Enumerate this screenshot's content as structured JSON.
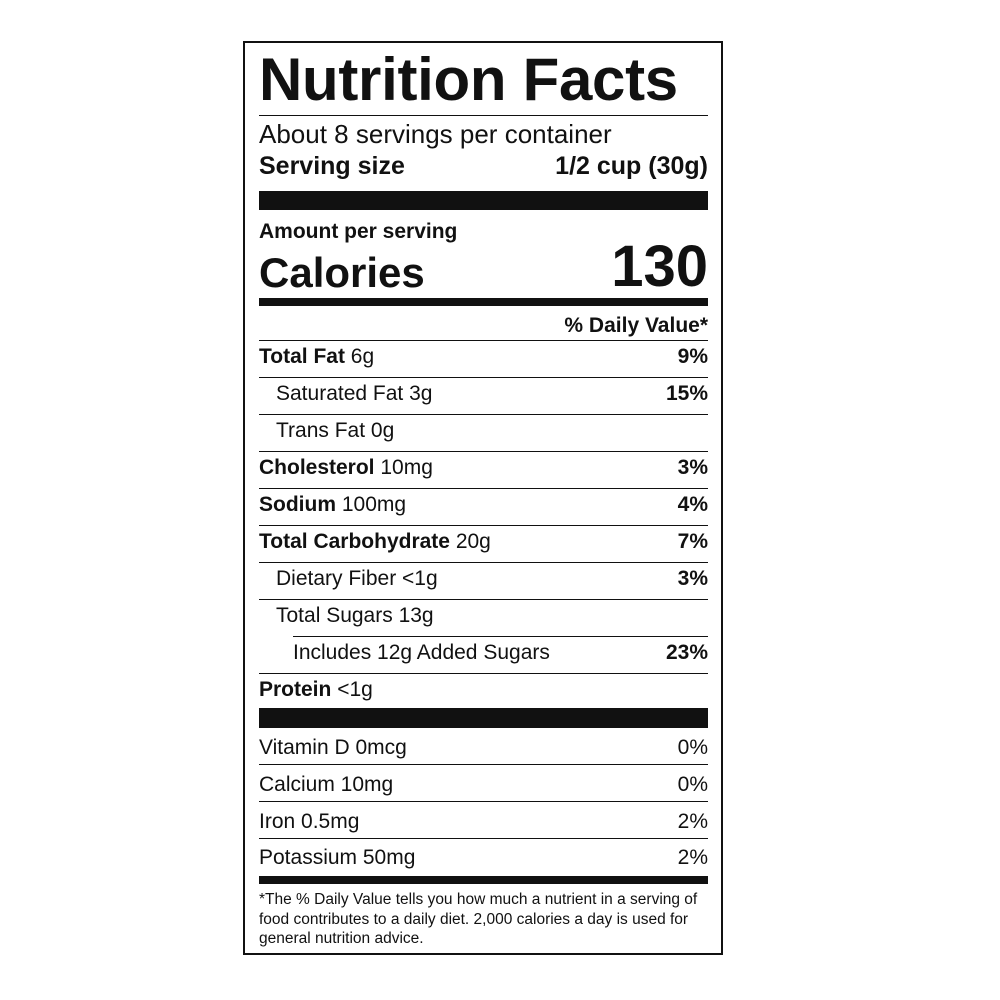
{
  "title": "Nutrition Facts",
  "servings_per_container": "About 8 servings per container",
  "serving_size": {
    "label": "Serving size",
    "value": "1/2 cup (30g)"
  },
  "amount_per_serving": "Amount per serving",
  "calories": {
    "label": "Calories",
    "value": "130"
  },
  "daily_value_header": "% Daily Value*",
  "nutrients": [
    {
      "name": "Total Fat",
      "amount": "6g",
      "dv": "9%",
      "bold": true,
      "indent": 0
    },
    {
      "name": "Saturated Fat",
      "amount": "3g",
      "dv": "15%",
      "bold": false,
      "indent": 1
    },
    {
      "name": "Trans Fat",
      "amount": "0g",
      "dv": "",
      "bold": false,
      "indent": 1
    },
    {
      "name": "Cholesterol",
      "amount": "10mg",
      "dv": "3%",
      "bold": true,
      "indent": 0
    },
    {
      "name": "Sodium",
      "amount": "100mg",
      "dv": "4%",
      "bold": true,
      "indent": 0
    },
    {
      "name": "Total Carbohydrate",
      "amount": "20g",
      "dv": "7%",
      "bold": true,
      "indent": 0
    },
    {
      "name": "Dietary Fiber",
      "amount": "<1g",
      "dv": "3%",
      "bold": false,
      "indent": 1
    },
    {
      "name": "Total Sugars",
      "amount": "13g",
      "dv": "",
      "bold": false,
      "indent": 1
    },
    {
      "name": "Includes 12g Added Sugars",
      "amount": "",
      "dv": "23%",
      "bold": false,
      "indent": 2
    },
    {
      "name": "Protein",
      "amount": "<1g",
      "dv": "",
      "bold": true,
      "indent": 0
    }
  ],
  "vitamins": [
    {
      "name": "Vitamin D 0mcg",
      "dv": "0%"
    },
    {
      "name": "Calcium 10mg",
      "dv": "0%"
    },
    {
      "name": "Iron 0.5mg",
      "dv": "2%"
    },
    {
      "name": "Potassium 50mg",
      "dv": "2%"
    }
  ],
  "footnote": "*The % Daily Value tells you how much a nutrient in a serving of food contributes to a daily diet. 2,000 calories a day is used for general nutrition advice."
}
